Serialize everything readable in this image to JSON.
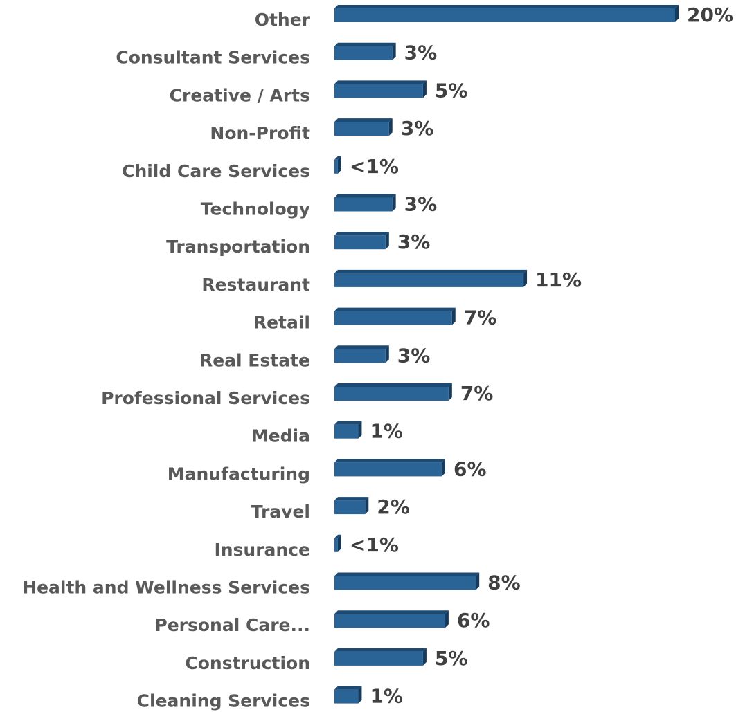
{
  "chart_data": {
    "type": "bar",
    "orientation": "horizontal",
    "color": "#2a6496",
    "categories": [
      "Other",
      "Consultant Services",
      "Creative / Arts",
      "Non-Profit",
      "Child Care Services",
      "Technology",
      "Transportation",
      "Restaurant",
      "Retail",
      "Real Estate",
      "Professional Services",
      "Media",
      "Manufacturing",
      "Travel",
      "Insurance",
      "Health and Wellness Services",
      "Personal Care...",
      "Construction",
      "Cleaning Services"
    ],
    "values": [
      20,
      3.4,
      5.2,
      3.2,
      0.2,
      3.4,
      3.0,
      11.1,
      6.9,
      3.0,
      6.7,
      1.4,
      6.3,
      1.8,
      0.2,
      8.3,
      6.5,
      5.2,
      1.4
    ],
    "value_labels": [
      "20%",
      "3%",
      "5%",
      "3%",
      "<1%",
      "3%",
      "3%",
      "11%",
      "7%",
      "3%",
      "7%",
      "1%",
      "6%",
      "2%",
      "<1%",
      "8%",
      "6%",
      "5%",
      "1%"
    ]
  }
}
